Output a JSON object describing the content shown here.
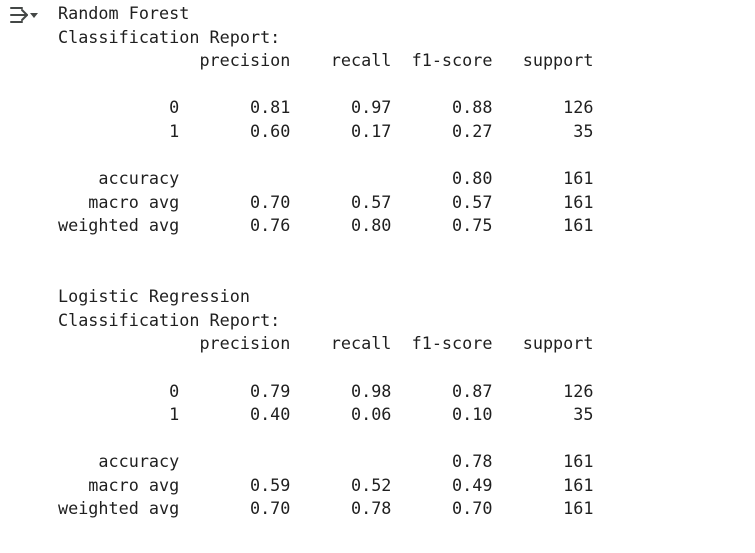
{
  "output_lines": [
    "Random Forest",
    "Classification Report:",
    "              precision    recall  f1-score   support",
    "",
    "           0       0.81      0.97      0.88       126",
    "           1       0.60      0.17      0.27        35",
    "",
    "    accuracy                           0.80       161",
    "   macro avg       0.70      0.57      0.57       161",
    "weighted avg       0.76      0.80      0.75       161",
    "",
    "",
    "Logistic Regression",
    "Classification Report:",
    "              precision    recall  f1-score   support",
    "",
    "           0       0.79      0.98      0.87       126",
    "           1       0.40      0.06      0.10        35",
    "",
    "    accuracy                           0.78       161",
    "   macro avg       0.59      0.52      0.49       161",
    "weighted avg       0.70      0.78      0.70       161"
  ],
  "toolbar": {
    "output_actions_icon": "output-actions-icon"
  },
  "colors": {
    "text": "#1f1f1f",
    "icon": "#444746",
    "background": "#ffffff"
  }
}
